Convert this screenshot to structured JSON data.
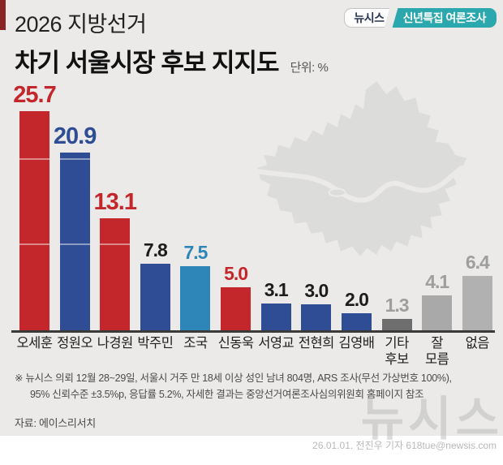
{
  "header": {
    "title_line1": "2026 지방선거",
    "title_line2": "차기 서울시장 후보 지지도",
    "unit_label": "단위: %",
    "badge": {
      "brand": "뉴시스",
      "label": "신년특집 여론조사"
    }
  },
  "colors": {
    "badge_teal": "#2BA7AE",
    "corner_accent_red": "#8B2322",
    "party_red": "#C3272B",
    "party_blue": "#2E4D94",
    "party_skyblue": "#2E86B8"
  },
  "chart_data": {
    "type": "bar",
    "title": "차기 서울시장 후보 지지도",
    "unit": "%",
    "categories": [
      "오세훈",
      "정원오",
      "나경원",
      "박주민",
      "조국",
      "신동욱",
      "서영교",
      "전현희",
      "김영배",
      "기타\n후보",
      "잘\n모름",
      "없음"
    ],
    "values": [
      25.7,
      20.9,
      13.1,
      7.8,
      7.5,
      5.0,
      3.1,
      3.0,
      2.0,
      1.3,
      4.1,
      6.4
    ],
    "bar_colors": [
      "#C3272B",
      "#2E4D94",
      "#C3272B",
      "#2E4D94",
      "#2E86B8",
      "#C3272B",
      "#2E4D94",
      "#2E4D94",
      "#2E4D94",
      "#6E6E6E",
      "#A9A9A9",
      "#B1B1B1"
    ],
    "label_colors": [
      "#C3272B",
      "#2E4D94",
      "#C3272B",
      "#1C1C1C",
      "#2E86B8",
      "#C3272B",
      "#1C1C1C",
      "#1C1C1C",
      "#1C1C1C",
      "#9E9E9E",
      "#9E9E9E",
      "#9E9E9E"
    ],
    "ylim": [
      0,
      30
    ],
    "gridlines": [
      10,
      20
    ],
    "grid_visible_on_bars_only": true,
    "legend": "none"
  },
  "footnote": {
    "line1": "※ 뉴시스 의뢰 12월 28~29일, 서울시 거주 만 18세 이상 성인 남녀 804명, ARS 조사(무선 가상번호 100%),",
    "line2": "95% 신뢰수준 ±3.5%p, 응답률 5.2%, 자세한 결과는 중앙선거여론조사심의위원회 홈페이지 참조"
  },
  "source": "자료: 에이스리서치",
  "credit": "26.01.01. 전진우 기자 618tue@newsis.com",
  "watermark": "뉴시스"
}
